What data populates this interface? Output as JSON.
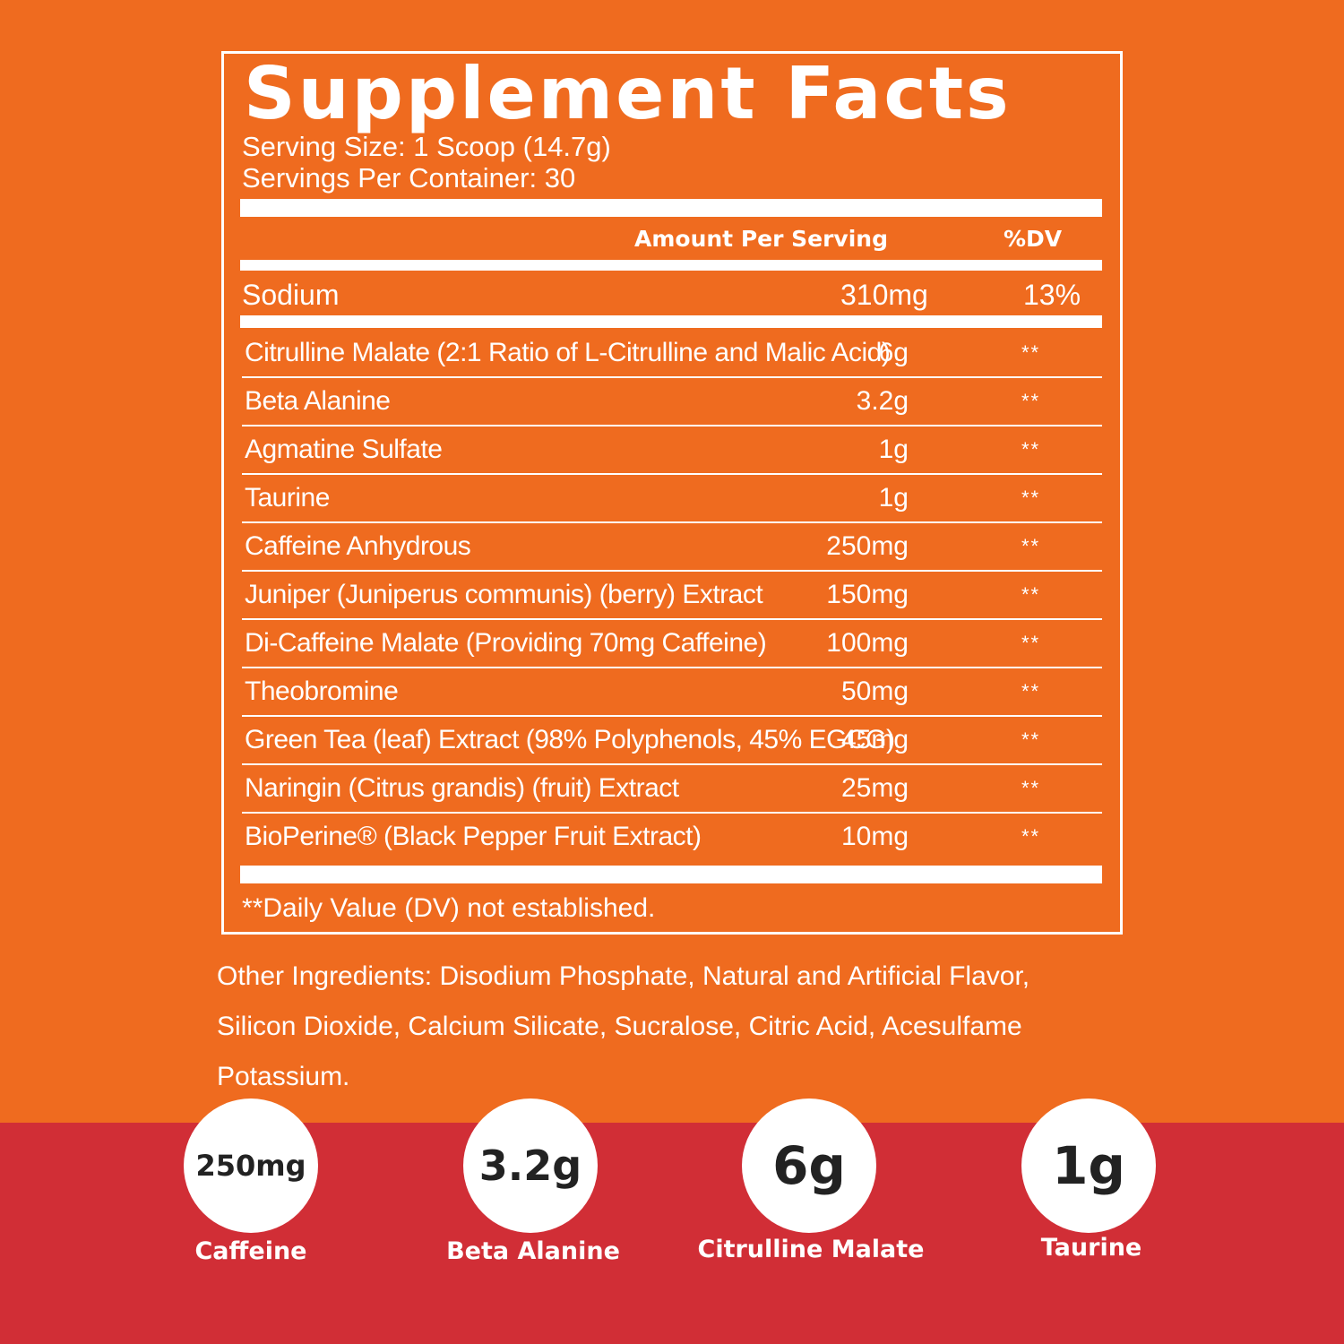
{
  "panel": {
    "title": "Supplement Facts",
    "serving_size": "Serving Size: 1 Scoop (14.7g)",
    "servings_per_container": "Servings Per Container: 30",
    "amount_header": "Amount Per Serving",
    "dv_header": "%DV",
    "sodium": {
      "name": "Sodium",
      "amount": "310mg",
      "dv": "13%"
    },
    "ingredients": [
      {
        "name": "Citrulline Malate (2:1 Ratio of L-Citrulline and Malic Acid)",
        "amount": "6g",
        "dv": "**"
      },
      {
        "name": "Beta Alanine",
        "amount": "3.2g",
        "dv": "**"
      },
      {
        "name": "Agmatine Sulfate",
        "amount": "1g",
        "dv": "**"
      },
      {
        "name": "Taurine",
        "amount": "1g",
        "dv": "**"
      },
      {
        "name": "Caffeine Anhydrous",
        "amount": "250mg",
        "dv": "**"
      },
      {
        "name": "Juniper (Juniperus communis) (berry) Extract",
        "amount": "150mg",
        "dv": "**"
      },
      {
        "name": "Di-Caffeine Malate (Providing 70mg Caffeine)",
        "amount": "100mg",
        "dv": "**"
      },
      {
        "name": "Theobromine",
        "amount": "50mg",
        "dv": "**"
      },
      {
        "name": "Green Tea (leaf) Extract (98% Polyphenols, 45% EGCG)",
        "amount": "45mg",
        "dv": "**"
      },
      {
        "name": "Naringin (Citrus grandis) (fruit) Extract",
        "amount": "25mg",
        "dv": "**"
      },
      {
        "name": "BioPerine® (Black Pepper Fruit Extract)",
        "amount": "10mg",
        "dv": "**"
      }
    ],
    "footnote": "**Daily Value (DV) not established.",
    "other_ingredients": "Other Ingredients: Disodium Phosphate, Natural and Artificial Flavor, Silicon Dioxide, Calcium Silicate, Sucralose, Citric Acid, Acesulfame Potassium."
  },
  "highlights": [
    {
      "value": "250mg",
      "label": "Caffeine"
    },
    {
      "value": "3.2g",
      "label": "Beta Alanine"
    },
    {
      "value": "6g",
      "label": "Citrulline Malate"
    },
    {
      "value": "1g",
      "label": "Taurine"
    }
  ],
  "colors": {
    "background": "#ef6b1f",
    "band": "#d12e36",
    "text": "#ffffff"
  }
}
